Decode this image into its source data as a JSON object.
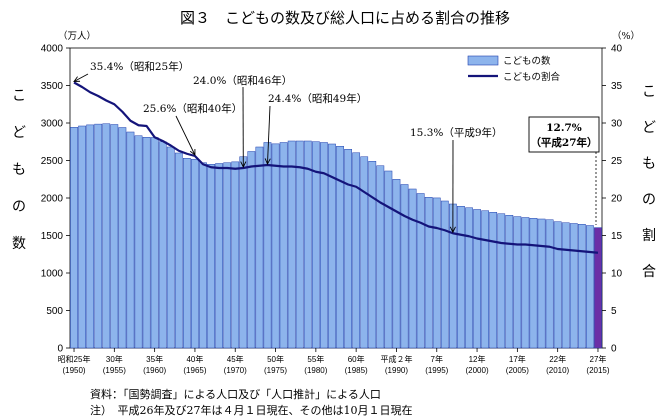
{
  "title": "図３　こどもの数及び総人口に占める割合の推移",
  "left_unit": "（万人）",
  "right_unit": "（%）",
  "left_axis_label": [
    "こ",
    "ど",
    "も",
    "の",
    "数"
  ],
  "right_axis_label": [
    "こ",
    "ど",
    "も",
    "の",
    "割",
    "合"
  ],
  "legend": {
    "bars": "こどもの数",
    "line": "こどもの割合"
  },
  "annotations": [
    {
      "text": "35.4%（昭和25年）",
      "year": 1950
    },
    {
      "text": "25.6%（昭和40年）",
      "year": 1965
    },
    {
      "text": "24.0%（昭和46年）",
      "year": 1971
    },
    {
      "text": "24.4%（昭和49年）",
      "year": 1974
    },
    {
      "text": "15.3%（平成9年）",
      "year": 1997
    },
    {
      "text_line1": "12.7%",
      "text_line2": "（平成27年）",
      "year": 2015
    }
  ],
  "notes": {
    "source": "資料：「国勢調査」による人口及び「人口推計」による人口",
    "note": "注）　平成26年及び27年は４月１日現在、その他は10月１日現在"
  },
  "colors": {
    "bar_fill": "#8db4ec",
    "bar_stroke": "#1f3fae",
    "bar_highlight": "#6b2fa6",
    "line": "#14147a"
  },
  "chart_data": {
    "type": "bar",
    "title": "図３　こどもの数及び総人口に占める割合の推移",
    "x_tick_labels": [
      {
        "year": 1950,
        "era": "昭和25年",
        "western": "(1950)"
      },
      {
        "year": 1955,
        "era": "30年",
        "western": "(1955)"
      },
      {
        "year": 1960,
        "era": "35年",
        "western": "(1960)"
      },
      {
        "year": 1965,
        "era": "40年",
        "western": "(1965)"
      },
      {
        "year": 1970,
        "era": "45年",
        "western": "(1970)"
      },
      {
        "year": 1975,
        "era": "50年",
        "western": "(1975)"
      },
      {
        "year": 1980,
        "era": "55年",
        "western": "(1980)"
      },
      {
        "year": 1985,
        "era": "60年",
        "western": "(1985)"
      },
      {
        "year": 1990,
        "era": "平成２年",
        "western": "(1990)"
      },
      {
        "year": 1995,
        "era": "7年",
        "western": "(1995)"
      },
      {
        "year": 2000,
        "era": "12年",
        "western": "(2000)"
      },
      {
        "year": 2005,
        "era": "17年",
        "western": "(2005)"
      },
      {
        "year": 2010,
        "era": "22年",
        "western": "(2010)"
      },
      {
        "year": 2015,
        "era": "27年",
        "western": "(2015)"
      }
    ],
    "y_left": {
      "label": "こどもの数",
      "unit": "（万人）",
      "range": [
        0,
        4000
      ],
      "ticks": [
        0,
        500,
        1000,
        1500,
        2000,
        2500,
        3000,
        3500,
        4000
      ]
    },
    "y_right": {
      "label": "こどもの割合",
      "unit": "（%）",
      "range": [
        0,
        40
      ],
      "ticks": [
        0,
        5,
        10,
        15,
        20,
        25,
        30,
        35,
        40
      ]
    },
    "series": [
      {
        "name": "こどもの数",
        "kind": "bar",
        "axis": "left",
        "x": [
          1950,
          1951,
          1952,
          1953,
          1954,
          1955,
          1956,
          1957,
          1958,
          1959,
          1960,
          1961,
          1962,
          1963,
          1964,
          1965,
          1966,
          1967,
          1968,
          1969,
          1970,
          1971,
          1972,
          1973,
          1974,
          1975,
          1976,
          1977,
          1978,
          1979,
          1980,
          1981,
          1982,
          1983,
          1984,
          1985,
          1986,
          1987,
          1988,
          1989,
          1990,
          1991,
          1992,
          1993,
          1994,
          1995,
          1996,
          1997,
          1998,
          1999,
          2000,
          2001,
          2002,
          2003,
          2004,
          2005,
          2006,
          2007,
          2008,
          2009,
          2010,
          2011,
          2012,
          2013,
          2014,
          2015
        ],
        "values": [
          2943,
          2960,
          2975,
          2985,
          2990,
          2980,
          2940,
          2880,
          2830,
          2810,
          2807,
          2750,
          2680,
          2600,
          2530,
          2517,
          2470,
          2450,
          2460,
          2470,
          2482,
          2550,
          2620,
          2680,
          2740,
          2722,
          2740,
          2760,
          2760,
          2760,
          2751,
          2740,
          2720,
          2690,
          2650,
          2603,
          2550,
          2490,
          2430,
          2360,
          2249,
          2180,
          2120,
          2060,
          2010,
          2001,
          1960,
          1920,
          1890,
          1870,
          1847,
          1830,
          1810,
          1790,
          1770,
          1752,
          1740,
          1730,
          1720,
          1710,
          1684,
          1670,
          1660,
          1650,
          1633,
          1605
        ]
      },
      {
        "name": "こどもの割合",
        "kind": "line",
        "axis": "right",
        "x": [
          1950,
          1951,
          1952,
          1953,
          1954,
          1955,
          1956,
          1957,
          1958,
          1959,
          1960,
          1961,
          1962,
          1963,
          1964,
          1965,
          1966,
          1967,
          1968,
          1969,
          1970,
          1971,
          1972,
          1973,
          1974,
          1975,
          1976,
          1977,
          1978,
          1979,
          1980,
          1981,
          1982,
          1983,
          1984,
          1985,
          1986,
          1987,
          1988,
          1989,
          1990,
          1991,
          1992,
          1993,
          1994,
          1995,
          1996,
          1997,
          1998,
          1999,
          2000,
          2001,
          2002,
          2003,
          2004,
          2005,
          2006,
          2007,
          2008,
          2009,
          2010,
          2011,
          2012,
          2013,
          2014,
          2015
        ],
        "values": [
          35.4,
          34.8,
          34.1,
          33.6,
          33.0,
          32.5,
          31.5,
          30.3,
          29.7,
          29.6,
          28.1,
          27.6,
          27.0,
          26.3,
          25.9,
          25.6,
          24.5,
          24.1,
          24.0,
          24.0,
          23.9,
          24.0,
          24.2,
          24.3,
          24.4,
          24.3,
          24.2,
          24.2,
          24.1,
          23.9,
          23.5,
          23.3,
          22.8,
          22.3,
          21.8,
          21.5,
          20.8,
          20.1,
          19.4,
          18.8,
          18.2,
          17.6,
          17.1,
          16.7,
          16.2,
          16.0,
          15.7,
          15.3,
          15.1,
          14.9,
          14.6,
          14.4,
          14.2,
          14.0,
          13.9,
          13.8,
          13.8,
          13.7,
          13.6,
          13.5,
          13.2,
          13.1,
          13.0,
          12.9,
          12.8,
          12.7
        ]
      }
    ],
    "legend_position": "top-right",
    "grid": false
  }
}
